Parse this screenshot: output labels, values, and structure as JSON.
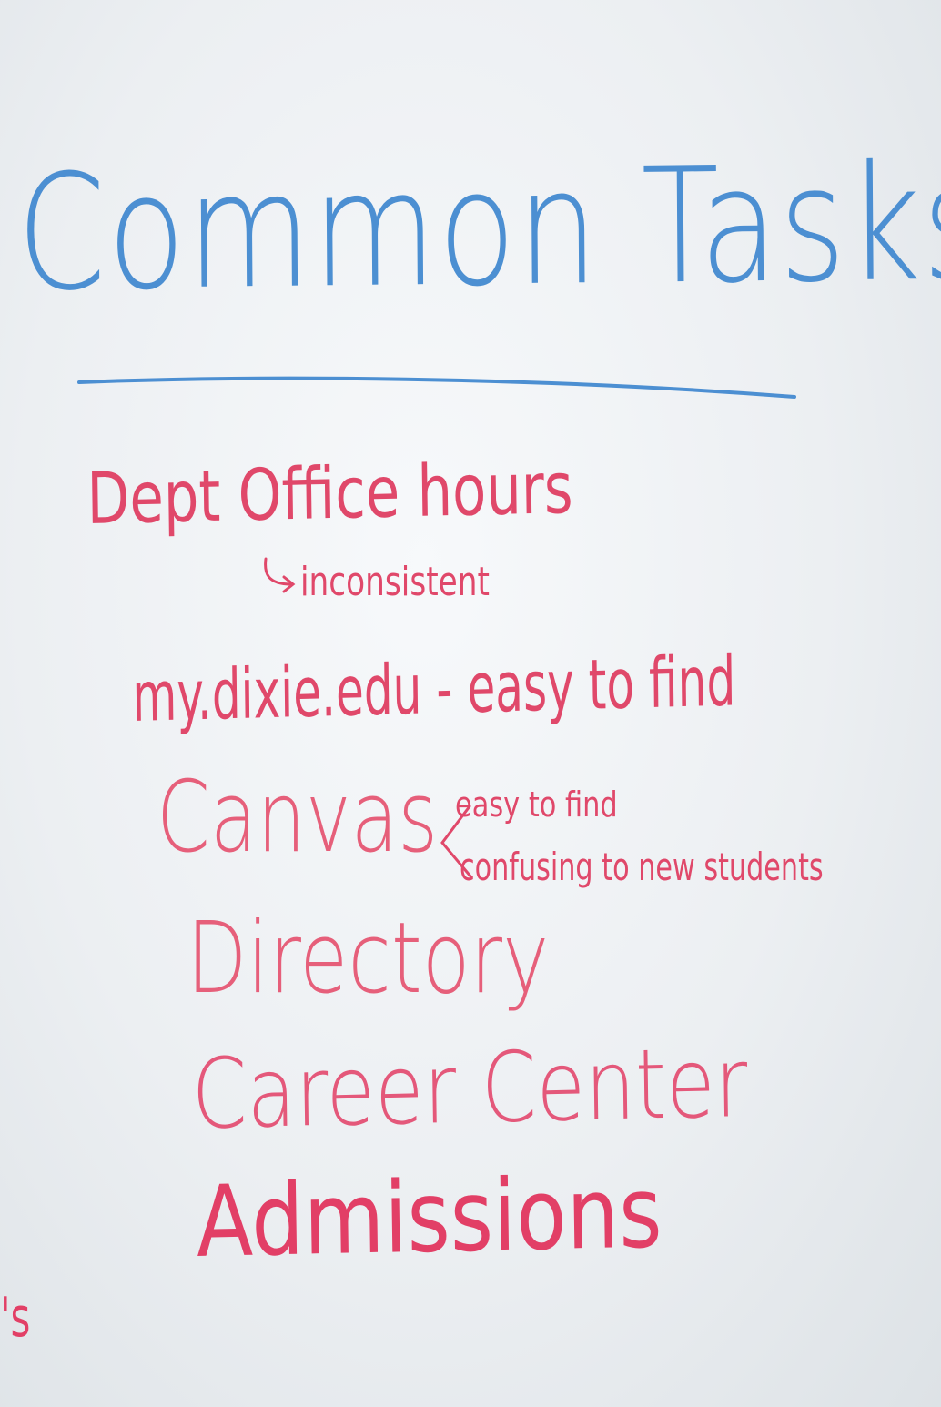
{
  "heading": "Common Tasks",
  "items": [
    {
      "label": "Dept Office hours",
      "note": "inconsistent"
    },
    {
      "label": "my.dixie.edu - easy to find"
    },
    {
      "label": "Canvas",
      "notes": [
        "easy to find",
        "confusing to new students"
      ]
    },
    {
      "label": "Directory"
    },
    {
      "label": "Career Center"
    },
    {
      "label": "Admissions"
    }
  ],
  "edge_fragment": "'s",
  "colors": {
    "board": "#eef1f4",
    "blue_marker": "#4c8fd2",
    "red_marker": "#e0486a"
  }
}
